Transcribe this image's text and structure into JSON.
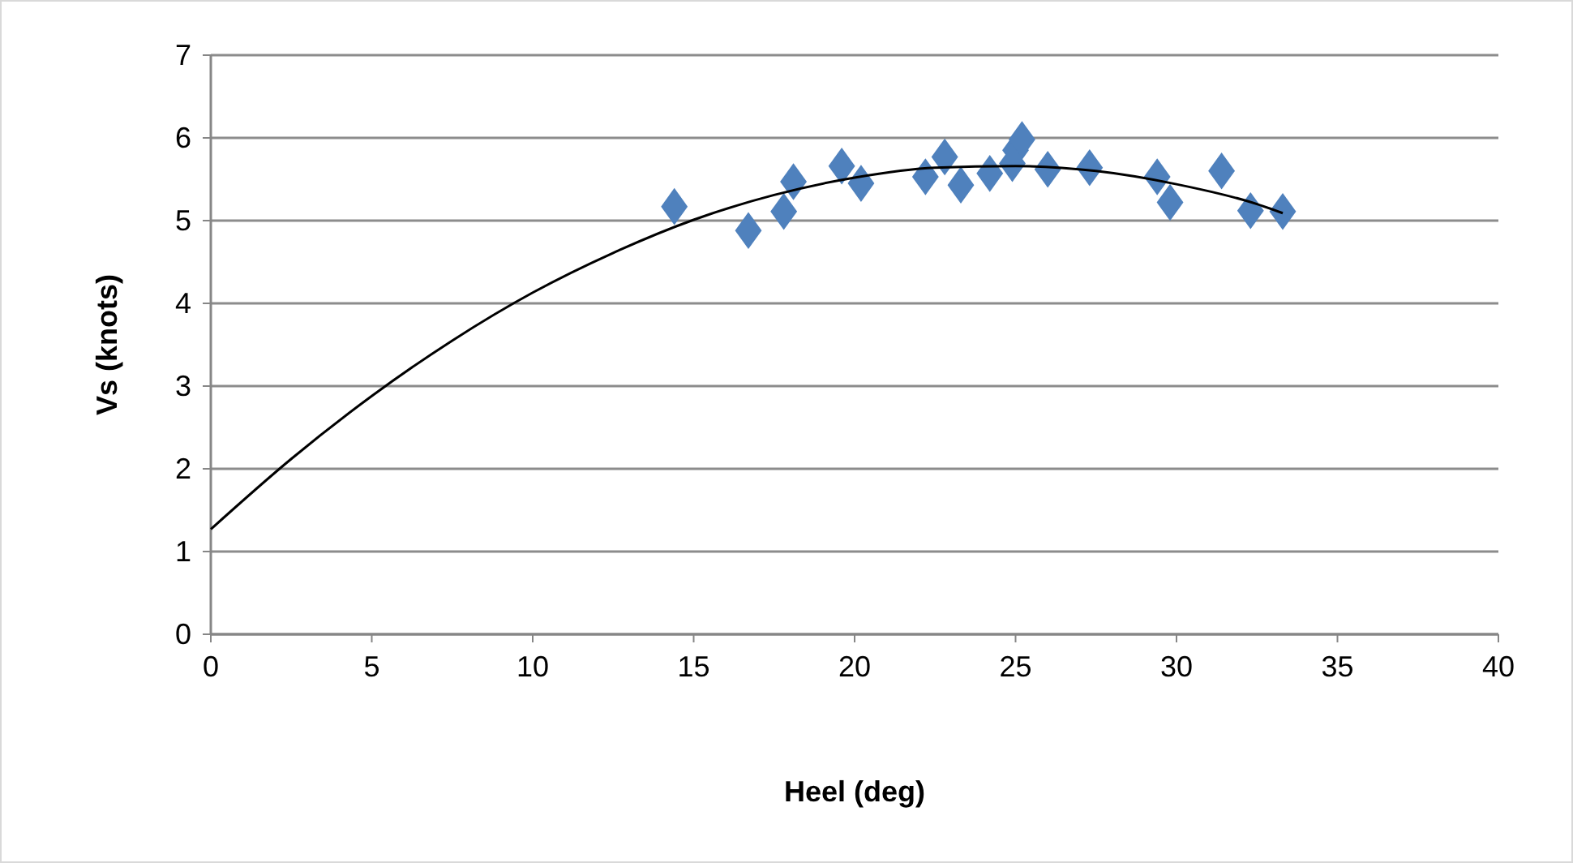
{
  "chart_data": {
    "type": "scatter",
    "xlabel": "Heel (deg)",
    "ylabel": "Vs (knots)",
    "xlim": [
      0,
      40
    ],
    "ylim": [
      0,
      7
    ],
    "xticks": [
      0,
      5,
      10,
      15,
      20,
      25,
      30,
      35,
      40
    ],
    "yticks": [
      0,
      1,
      2,
      3,
      4,
      5,
      6,
      7
    ],
    "grid": "y",
    "series": [
      {
        "color": "#4f81bd",
        "marker": "diamond",
        "x": [
          14.4,
          16.7,
          17.8,
          18.1,
          19.6,
          20.2,
          22.2,
          22.8,
          23.3,
          24.2,
          24.9,
          25.0,
          25.2,
          26.0,
          27.3,
          29.4,
          29.8,
          31.4,
          32.3,
          33.3
        ],
        "values": [
          5.17,
          4.88,
          5.11,
          5.47,
          5.66,
          5.45,
          5.53,
          5.77,
          5.43,
          5.57,
          5.69,
          5.85,
          5.98,
          5.62,
          5.64,
          5.53,
          5.22,
          5.6,
          5.12,
          5.11
        ]
      },
      {
        "type": "line",
        "color": "#000000",
        "x": [
          0,
          2.5,
          5,
          7.5,
          10,
          12.5,
          15,
          17.5,
          20,
          22.5,
          25,
          27.5,
          30,
          32.5,
          33.3
        ],
        "values": [
          1.27,
          2.12,
          2.88,
          3.55,
          4.13,
          4.61,
          5.01,
          5.31,
          5.52,
          5.64,
          5.66,
          5.6,
          5.44,
          5.2,
          5.09
        ]
      }
    ]
  }
}
